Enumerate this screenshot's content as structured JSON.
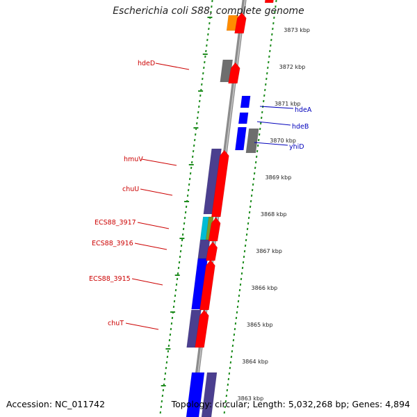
{
  "title": "Escherichia coli S88, complete genome",
  "footer": {
    "accession": "Accession: NC_011742",
    "stats": "Topology: circular; Length: 5,032,268 bp; Genes: 4,894"
  },
  "tick_labels": [
    "3873 kbp",
    "3872 kbp",
    "3871 kbp",
    "3870 kbp",
    "3869 kbp",
    "3868 kbp",
    "3867 kbp",
    "3866 kbp",
    "3865 kbp",
    "3864 kbp",
    "3863 kbp"
  ],
  "gene_labels_forward": [
    "hdeA",
    "hdeB",
    "yhiD"
  ],
  "gene_labels_reverse": [
    "hdeD",
    "hmuV",
    "chuU",
    "ECS88_3917",
    "ECS88_3916",
    "ECS88_3915",
    "chuT"
  ],
  "colors": {
    "backbone": "#8c8c8c",
    "ticks": "#1e8c1e",
    "cds_red": "#ff0000",
    "gene_blue": "#0000ff",
    "gene_purple": "#4b3f8f",
    "gene_gray": "#6e6e6e",
    "gene_orange": "#ff8c00",
    "gene_cyan": "#00bcd4",
    "gene_olive": "#7a9a2a",
    "label_red": "#cc0000",
    "label_blue": "#0000bb"
  }
}
